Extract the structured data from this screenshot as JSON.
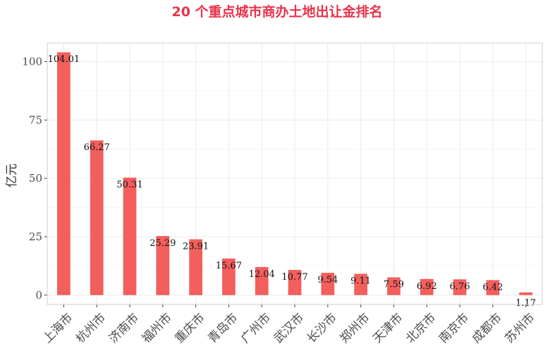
{
  "chart_data": {
    "type": "bar",
    "title": "20 个重点城市商办土地出让金排名",
    "title_color": "#e8334a",
    "bar_color": "#f25f5c",
    "xlabel": "",
    "ylabel": "亿元",
    "ylim": [
      -4,
      108
    ],
    "yticks": [
      0,
      25,
      50,
      75,
      100
    ],
    "grid": true,
    "categories": [
      "上海市",
      "杭州市",
      "济南市",
      "福州市",
      "重庆市",
      "青岛市",
      "广州市",
      "武汉市",
      "长沙市",
      "郑州市",
      "天津市",
      "北京市",
      "南京市",
      "成都市",
      "苏州市"
    ],
    "values": [
      104.01,
      66.27,
      50.31,
      25.29,
      23.91,
      15.67,
      12.04,
      10.77,
      9.54,
      9.11,
      7.59,
      6.92,
      6.76,
      6.42,
      1.17
    ],
    "data_labels": [
      "104.01",
      "66.27",
      "50.31",
      "25.29",
      "23.91",
      "15.67",
      "12.04",
      "10.77",
      "9.54",
      "9.11",
      "7.59",
      "6.92",
      "6.76",
      "6.42",
      "1.17"
    ]
  }
}
